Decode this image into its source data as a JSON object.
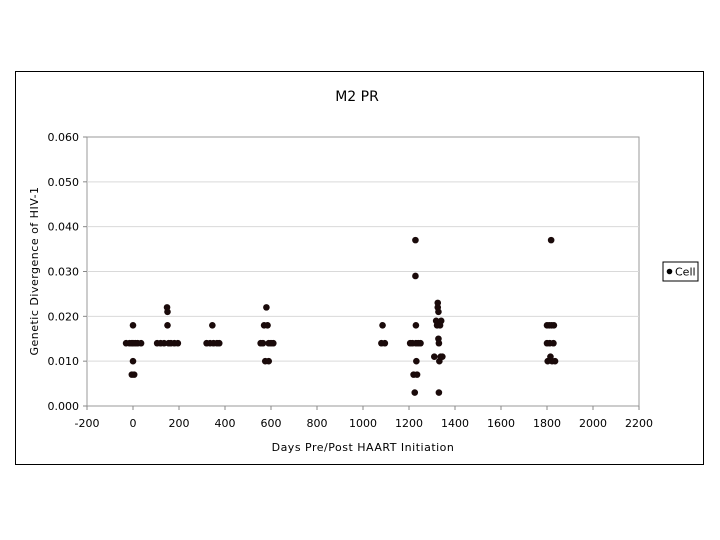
{
  "chart_data": {
    "type": "scatter",
    "title": "M2  PR",
    "xlabel": "Days   Pre/Post   HAART   Initiation",
    "ylabel": "Genetic   Divergence   of   HIV-1",
    "xlim": [
      -200,
      2200
    ],
    "ylim": [
      0.0,
      0.06
    ],
    "xticks": [
      "-200",
      "0",
      "200",
      "400",
      "600",
      "800",
      "1000",
      "1200",
      "1400",
      "1600",
      "1800",
      "2000",
      "2200"
    ],
    "yticks": [
      "0.000",
      "0.010",
      "0.020",
      "0.030",
      "0.040",
      "0.050",
      "0.060"
    ],
    "grid": "horizontal",
    "legend_position": "right",
    "series": [
      {
        "name": "Cell",
        "color": "#1a0a0a",
        "points": [
          [
            -30,
            0.014
          ],
          [
            -15,
            0.014
          ],
          [
            -5,
            0.014
          ],
          [
            0,
            0.018
          ],
          [
            0,
            0.014
          ],
          [
            0,
            0.01
          ],
          [
            -5,
            0.007
          ],
          [
            5,
            0.007
          ],
          [
            10,
            0.014
          ],
          [
            20,
            0.014
          ],
          [
            35,
            0.014
          ],
          [
            105,
            0.014
          ],
          [
            120,
            0.014
          ],
          [
            135,
            0.014
          ],
          [
            148,
            0.022
          ],
          [
            150,
            0.021
          ],
          [
            150,
            0.018
          ],
          [
            155,
            0.014
          ],
          [
            165,
            0.014
          ],
          [
            180,
            0.014
          ],
          [
            195,
            0.014
          ],
          [
            320,
            0.014
          ],
          [
            335,
            0.014
          ],
          [
            345,
            0.018
          ],
          [
            350,
            0.014
          ],
          [
            365,
            0.014
          ],
          [
            375,
            0.014
          ],
          [
            555,
            0.014
          ],
          [
            565,
            0.014
          ],
          [
            570,
            0.018
          ],
          [
            575,
            0.01
          ],
          [
            580,
            0.022
          ],
          [
            585,
            0.018
          ],
          [
            590,
            0.014
          ],
          [
            590,
            0.01
          ],
          [
            600,
            0.014
          ],
          [
            610,
            0.014
          ],
          [
            1085,
            0.018
          ],
          [
            1080,
            0.014
          ],
          [
            1095,
            0.014
          ],
          [
            1205,
            0.014
          ],
          [
            1215,
            0.014
          ],
          [
            1220,
            0.007
          ],
          [
            1225,
            0.003
          ],
          [
            1228,
            0.037
          ],
          [
            1228,
            0.029
          ],
          [
            1230,
            0.018
          ],
          [
            1230,
            0.014
          ],
          [
            1232,
            0.01
          ],
          [
            1235,
            0.007
          ],
          [
            1240,
            0.014
          ],
          [
            1250,
            0.014
          ],
          [
            1310,
            0.011
          ],
          [
            1318,
            0.019
          ],
          [
            1322,
            0.018
          ],
          [
            1325,
            0.023
          ],
          [
            1325,
            0.022
          ],
          [
            1328,
            0.021
          ],
          [
            1328,
            0.015
          ],
          [
            1330,
            0.014
          ],
          [
            1330,
            0.003
          ],
          [
            1332,
            0.01
          ],
          [
            1335,
            0.018
          ],
          [
            1338,
            0.011
          ],
          [
            1340,
            0.019
          ],
          [
            1345,
            0.011
          ],
          [
            1800,
            0.018
          ],
          [
            1800,
            0.014
          ],
          [
            1803,
            0.01
          ],
          [
            1810,
            0.018
          ],
          [
            1812,
            0.014
          ],
          [
            1815,
            0.011
          ],
          [
            1818,
            0.037
          ],
          [
            1820,
            0.018
          ],
          [
            1822,
            0.01
          ],
          [
            1828,
            0.014
          ],
          [
            1830,
            0.018
          ],
          [
            1835,
            0.01
          ]
        ]
      }
    ]
  }
}
